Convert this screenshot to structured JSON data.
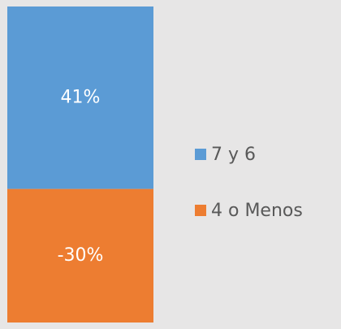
{
  "chart_data": {
    "type": "bar",
    "stacked": true,
    "categories": [
      null
    ],
    "series": [
      {
        "name": "7 y 6",
        "color": "#5b9bd5",
        "values": [
          41
        ],
        "value_labels": [
          "41%"
        ]
      },
      {
        "name": "4 o Menos",
        "color": "#ed7d31",
        "values": [
          -30
        ],
        "value_labels": [
          "-30%"
        ]
      }
    ]
  }
}
